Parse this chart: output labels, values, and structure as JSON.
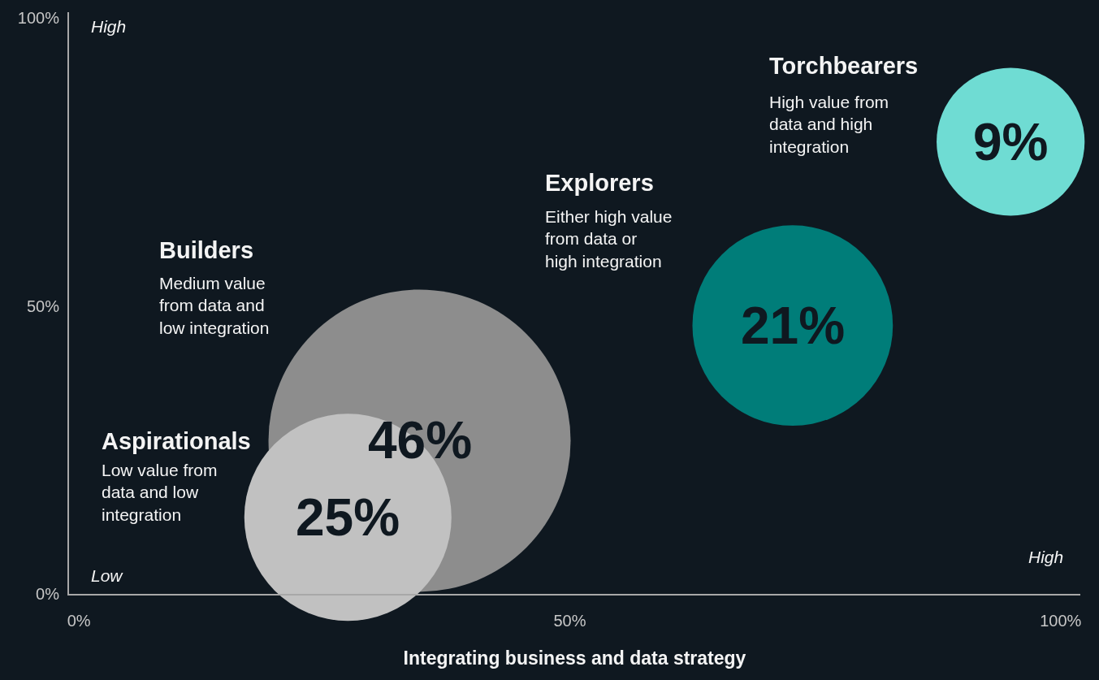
{
  "chart_data": {
    "type": "bubble",
    "xlabel": "Integrating business and data strategy",
    "xlim": [
      -1,
      102
    ],
    "ylim": [
      0,
      101
    ],
    "xticks": [
      {
        "value": 0,
        "label": "0%"
      },
      {
        "value": 50,
        "label": "50%"
      },
      {
        "value": 100,
        "label": "100%"
      }
    ],
    "yticks": [
      {
        "value": 0,
        "label": "0%"
      },
      {
        "value": 50,
        "label": "50%"
      },
      {
        "value": 100,
        "label": "100%"
      }
    ],
    "grid": false,
    "legend": false,
    "series": [
      {
        "color": "#8d8d8d",
        "x": [
          34.7
        ],
        "values": [
          26.6
        ],
        "sizes": [
          1
        ]
      },
      {
        "color": "#c1c1c1",
        "x": [
          27.4
        ],
        "values": [
          13.3
        ],
        "sizes": [
          0.47
        ]
      },
      {
        "color": "#007d79",
        "x": [
          72.7
        ],
        "values": [
          46.6
        ],
        "sizes": [
          0.44
        ]
      },
      {
        "color": "#6fdcd3",
        "x": [
          94.9
        ],
        "values": [
          78.5
        ],
        "sizes": [
          0.24
        ]
      }
    ],
    "annotations": [
      {
        "text": "46%",
        "x": 34.7,
        "y": 26.6
      },
      {
        "text": "25%",
        "x": 27.4,
        "y": 13.3
      },
      {
        "text": "21%",
        "x": 72.7,
        "y": 46.6
      },
      {
        "text": "9%",
        "x": 94.9,
        "y": 78.5
      },
      "Aspirationals",
      "Low value from\ndata and low\nintegration",
      "Builders",
      "Medium value\nfrom data and\nlow integration",
      "Explorers",
      "Either high value\nfrom data or\nhigh integration",
      "Torchbearers",
      "High value from\ndata and high\nintegration",
      "High",
      "Low",
      "High"
    ]
  }
}
